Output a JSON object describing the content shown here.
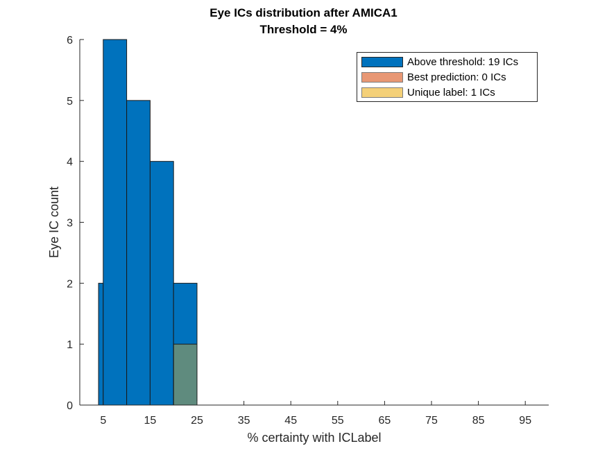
{
  "chart_data": {
    "type": "bar",
    "title": "Eye ICs distribution after AMICA1",
    "subtitle": "Threshold = 4%",
    "xlabel": "% certainty with ICLabel",
    "ylabel": "Eye IC count",
    "xlim": [
      0,
      100
    ],
    "ylim": [
      0,
      6
    ],
    "xticks": [
      5,
      15,
      25,
      35,
      45,
      55,
      65,
      75,
      85,
      95
    ],
    "yticks": [
      0,
      1,
      2,
      3,
      4,
      5,
      6
    ],
    "legend_position": "top-right",
    "series": [
      {
        "name": "Above threshold: 19 ICs",
        "color": "#0072BD",
        "bins": [
          {
            "x0": 4,
            "x1": 5,
            "value": 2
          },
          {
            "x0": 5,
            "x1": 10,
            "value": 6
          },
          {
            "x0": 10,
            "x1": 15,
            "value": 5
          },
          {
            "x0": 15,
            "x1": 20,
            "value": 4
          },
          {
            "x0": 20,
            "x1": 25,
            "value": 2
          }
        ]
      },
      {
        "name": "Best prediction: 0 ICs",
        "color": "#D95319",
        "bins": []
      },
      {
        "name": "Unique label: 1 ICs",
        "color": "#EDB120",
        "bins": [
          {
            "x0": 20,
            "x1": 25,
            "value": 1
          }
        ]
      }
    ]
  }
}
